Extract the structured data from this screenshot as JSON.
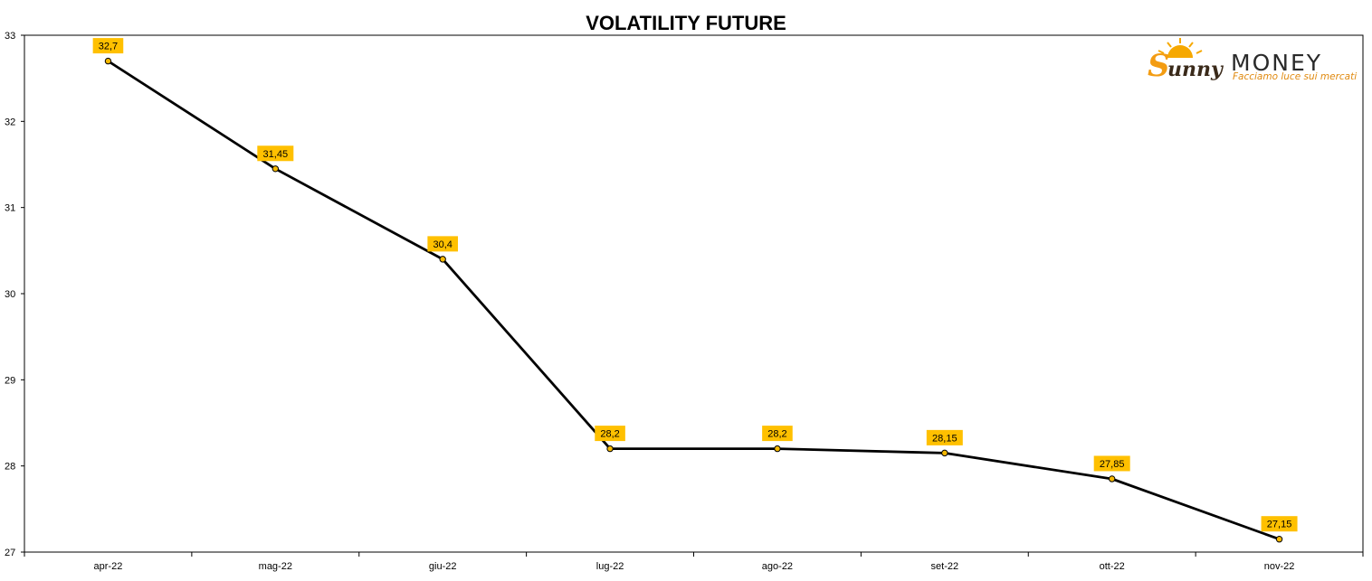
{
  "logo": {
    "brand_word": "unny",
    "brand_initial": "S",
    "money": "MONEY",
    "tagline": "Facciamo luce sui mercati"
  },
  "chart_data": {
    "type": "line",
    "title": "VOLATILITY FUTURE",
    "xlabel": "",
    "ylabel": "",
    "categories": [
      "apr-22",
      "mag-22",
      "giu-22",
      "lug-22",
      "ago-22",
      "set-22",
      "ott-22",
      "nov-22"
    ],
    "series": [
      {
        "values": [
          32.7,
          31.45,
          30.4,
          28.2,
          28.2,
          28.15,
          27.85,
          27.15
        ],
        "data_labels": [
          "32,7",
          "31,45",
          "30,4",
          "28,2",
          "28,2",
          "28,15",
          "27,85",
          "27,15"
        ],
        "line_color": "#000000",
        "marker_fill": "#f5b800",
        "label_bg": "#ffc000"
      }
    ],
    "y_ticks": [
      "27",
      "28",
      "29",
      "30",
      "31",
      "32",
      "33"
    ],
    "ylim": [
      27,
      33
    ],
    "grid": false,
    "legend": "none"
  }
}
